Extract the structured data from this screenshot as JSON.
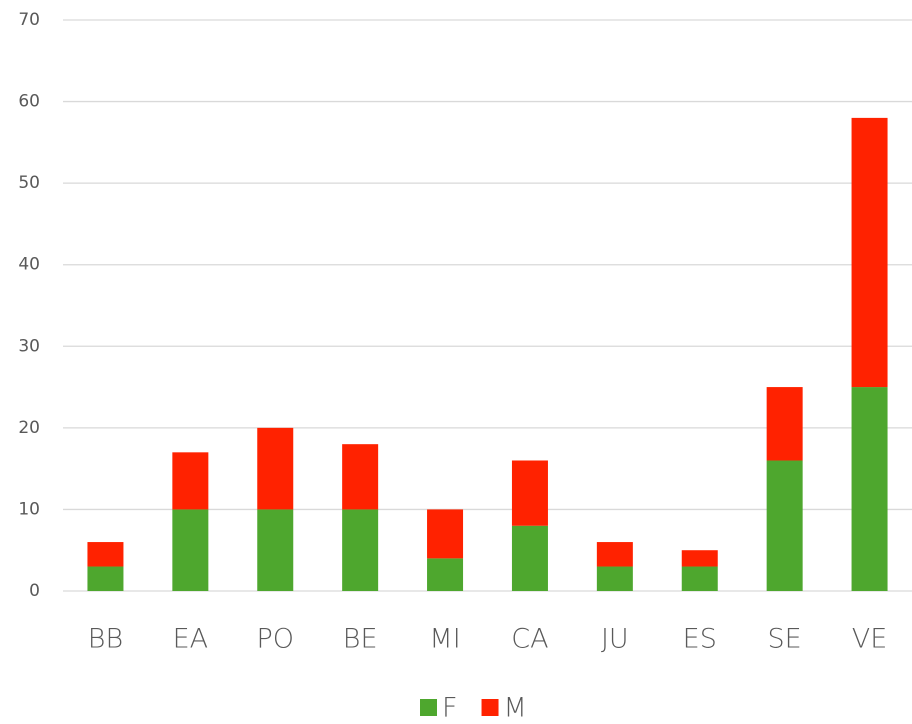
{
  "chart_data": {
    "type": "stacked_bar",
    "categories": [
      "BB",
      "EA",
      "PO",
      "BE",
      "MI",
      "CA",
      "JU",
      "ES",
      "SE",
      "VE"
    ],
    "series": [
      {
        "name": "F",
        "color": "#4ea72e",
        "values": [
          3,
          10,
          10,
          10,
          4,
          8,
          3,
          3,
          16,
          25
        ]
      },
      {
        "name": "M",
        "color": "#ff2200",
        "values": [
          3,
          7,
          10,
          8,
          6,
          8,
          3,
          2,
          9,
          33
        ]
      }
    ],
    "ylim": [
      0,
      70
    ],
    "yticks": [
      0,
      10,
      20,
      30,
      40,
      50,
      60,
      70
    ],
    "grid": true,
    "legend": "bottom"
  }
}
